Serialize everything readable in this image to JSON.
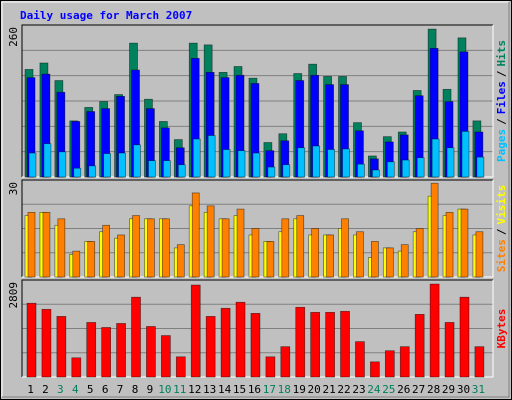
{
  "title": "Daily usage for March 2007",
  "categories": [
    "1",
    "2",
    "3",
    "4",
    "5",
    "6",
    "7",
    "8",
    "9",
    "10",
    "11",
    "12",
    "13",
    "14",
    "15",
    "16",
    "17",
    "18",
    "19",
    "20",
    "21",
    "22",
    "23",
    "24",
    "25",
    "26",
    "27",
    "28",
    "29",
    "30",
    "31"
  ],
  "category_colors": [
    "#000000",
    "#000000",
    "#00805c",
    "#00805c",
    "#000000",
    "#000000",
    "#000000",
    "#000000",
    "#000000",
    "#00805c",
    "#00805c",
    "#000000",
    "#000000",
    "#000000",
    "#000000",
    "#000000",
    "#00805c",
    "#00805c",
    "#000000",
    "#000000",
    "#000000",
    "#000000",
    "#000000",
    "#00805c",
    "#00805c",
    "#000000",
    "#000000",
    "#000000",
    "#000000",
    "#000000",
    "#00805c"
  ],
  "legend_separator": "/",
  "chart_data": [
    {
      "type": "bar",
      "ylim": [
        0,
        260
      ],
      "yticks": [
        260
      ],
      "series": [
        {
          "name": "Hits",
          "color": "#00805c",
          "values": [
            184,
            195,
            165,
            96,
            119,
            129,
            141,
            229,
            133,
            95,
            64,
            229,
            226,
            179,
            189,
            169,
            59,
            74,
            177,
            193,
            172,
            172,
            93,
            36,
            69,
            77,
            148,
            253,
            150,
            238,
            96
          ]
        },
        {
          "name": "Files",
          "color": "#0000ff",
          "values": [
            170,
            176,
            145,
            95,
            112,
            117,
            138,
            183,
            117,
            84,
            50,
            203,
            179,
            170,
            174,
            160,
            45,
            62,
            165,
            174,
            158,
            158,
            79,
            31,
            60,
            72,
            139,
            220,
            129,
            214,
            77
          ]
        },
        {
          "name": "Pages",
          "color": "#00c0ff",
          "values": [
            41,
            57,
            43,
            15,
            19,
            40,
            41,
            55,
            28,
            28,
            21,
            65,
            71,
            47,
            45,
            41,
            17,
            21,
            50,
            53,
            47,
            48,
            22,
            12,
            26,
            29,
            33,
            65,
            50,
            78,
            34
          ]
        }
      ]
    },
    {
      "type": "bar",
      "ylim": [
        0,
        30
      ],
      "yticks": [
        30
      ],
      "series": [
        {
          "name": "Visits",
          "color": "#ffff00",
          "values": [
            19,
            20,
            16,
            7,
            11,
            14,
            12,
            18,
            18,
            18,
            9,
            22,
            20,
            18,
            19,
            13,
            11,
            14,
            18,
            13,
            13,
            15,
            13,
            6,
            9,
            8,
            14,
            25,
            19,
            21,
            13
          ]
        },
        {
          "name": "Sites",
          "color": "#ff8000",
          "values": [
            20,
            20,
            18,
            8,
            11,
            16,
            13,
            19,
            18,
            18,
            10,
            26,
            22,
            18,
            21,
            15,
            11,
            18,
            19,
            15,
            13,
            18,
            14,
            11,
            9,
            10,
            15,
            29,
            20,
            21,
            14
          ]
        }
      ]
    },
    {
      "type": "bar",
      "ylim": [
        0,
        2809
      ],
      "yticks": [
        2809
      ],
      "series": [
        {
          "name": "KBytes",
          "color": "#ff0000",
          "values": [
            2136,
            1960,
            1755,
            556,
            1580,
            1434,
            1551,
            2311,
            1463,
            1200,
            585,
            2663,
            1755,
            1990,
            2165,
            1843,
            585,
            878,
            2019,
            1873,
            1873,
            1902,
            1024,
            439,
            761,
            878,
            1814,
            2692,
            1580,
            2311,
            878
          ]
        }
      ]
    }
  ]
}
